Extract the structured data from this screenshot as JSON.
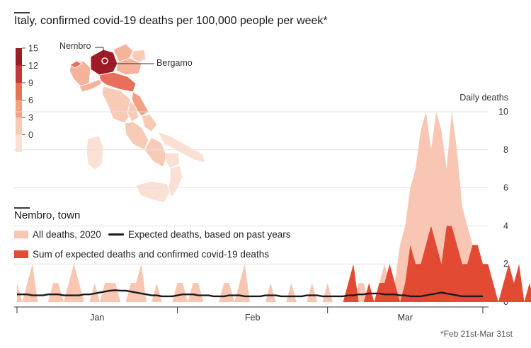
{
  "title": "Italy, confirmed covid-19 deaths per 100,000 people per week*",
  "map": {
    "legend_ticks": [
      "15",
      "12",
      "9",
      "6",
      "3",
      "0"
    ],
    "legend_colors": [
      "#9e1b26",
      "#c8343b",
      "#e8705a",
      "#f2a283",
      "#f8cbb7",
      "#fbe0d4"
    ],
    "callout_left": "Nembro",
    "callout_right": "Bergamo"
  },
  "chart_title": "Nembro, town",
  "legend": {
    "all_deaths": "All deaths, 2020",
    "expected": "Expected deaths, based on past years",
    "sum": "Sum of expected deaths and confirmed covid-19 deaths"
  },
  "colors": {
    "all": "#f8c6b3",
    "sum": "#e34a33",
    "expected": "#1a1a1a",
    "grid": "#e2e2e2"
  },
  "footnote": "*Feb 21st-Mar 31st",
  "chart_data": {
    "type": "area",
    "ylabel": "Daily deaths",
    "ylim": [
      0,
      10
    ],
    "yticks": [
      "10",
      "8",
      "6",
      "4",
      "2",
      "0"
    ],
    "x_month_labels": [
      "Jan",
      "Feb",
      "Mar"
    ],
    "x_days": 91,
    "series": [
      {
        "name": "All deaths, 2020",
        "values": [
          1,
          0,
          1,
          2,
          0,
          0,
          0,
          1,
          1,
          0,
          1,
          2,
          1,
          0,
          0,
          1,
          0,
          1,
          1,
          1,
          0,
          0,
          1,
          1,
          2,
          0,
          0,
          1,
          0,
          0,
          0,
          1,
          1,
          0,
          1,
          1,
          0,
          0,
          0,
          0,
          1,
          1,
          0,
          1,
          2,
          0,
          0,
          0,
          0,
          1,
          0,
          0,
          0,
          1,
          0,
          0,
          0,
          1,
          0,
          0,
          1,
          0,
          0,
          0,
          0,
          0,
          1,
          1,
          0,
          0,
          1,
          2,
          1,
          1,
          3,
          4,
          6,
          7,
          9,
          10,
          8,
          10,
          9,
          7,
          10,
          8,
          5,
          4,
          3,
          2,
          2
        ]
      },
      {
        "name": "Sum of expected deaths and confirmed covid-19 deaths",
        "start_index": 62,
        "values": [
          0,
          0,
          1,
          2,
          0,
          0,
          1,
          0,
          1,
          1,
          2,
          1,
          0,
          1,
          3,
          2,
          2,
          3,
          4,
          3,
          2,
          4,
          4,
          3,
          2,
          2,
          3,
          3,
          2,
          2,
          1,
          0,
          1,
          2,
          1,
          2,
          0,
          1,
          0
        ]
      },
      {
        "name": "Expected deaths, based on past years",
        "values": [
          0.4,
          0.4,
          0.4,
          0.35,
          0.35,
          0.35,
          0.4,
          0.4,
          0.4,
          0.35,
          0.35,
          0.35,
          0.35,
          0.4,
          0.4,
          0.45,
          0.5,
          0.55,
          0.6,
          0.62,
          0.6,
          0.6,
          0.55,
          0.5,
          0.45,
          0.4,
          0.35,
          0.35,
          0.3,
          0.3,
          0.3,
          0.35,
          0.4,
          0.4,
          0.4,
          0.35,
          0.35,
          0.35,
          0.3,
          0.3,
          0.3,
          0.35,
          0.35,
          0.35,
          0.3,
          0.3,
          0.3,
          0.3,
          0.35,
          0.35,
          0.35,
          0.3,
          0.3,
          0.3,
          0.3,
          0.3,
          0.35,
          0.35,
          0.35,
          0.3,
          0.3,
          0.3,
          0.3,
          0.3,
          0.35,
          0.35,
          0.4,
          0.4,
          0.45,
          0.45,
          0.45,
          0.4,
          0.4,
          0.4,
          0.35,
          0.35,
          0.3,
          0.3,
          0.3,
          0.35,
          0.4,
          0.45,
          0.5,
          0.45,
          0.4,
          0.35,
          0.3,
          0.3,
          0.3,
          0.3,
          0.3
        ]
      }
    ]
  }
}
